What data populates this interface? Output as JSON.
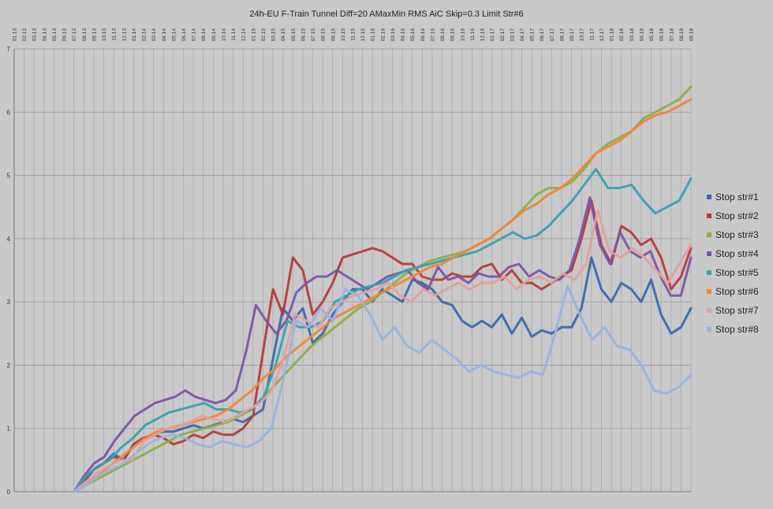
{
  "chart_data": {
    "type": "line",
    "title": "24h-EU F-Train Tunnel Diff=20 AMaxMin RMS AiC Skip=0.3 Limit Str#6",
    "xlabel": "",
    "ylabel": "",
    "ylim": [
      0,
      7
    ],
    "y_ticks": [
      "0",
      "1",
      "2",
      "3",
      "4",
      "5",
      "6",
      "7"
    ],
    "x_tick_labels": [
      "01.13",
      "02.13",
      "03.13",
      "04.13",
      "05.13",
      "06.13",
      "07.13",
      "08.13",
      "09.13",
      "10.13",
      "11.13",
      "12.13",
      "01.14",
      "02.14",
      "03.14",
      "04.14",
      "05.14",
      "06.14",
      "07.14",
      "08.14",
      "09.14",
      "10.14",
      "11.14",
      "12.14",
      "01.15",
      "02.15",
      "03.15",
      "04.15",
      "05.15",
      "06.15",
      "07.15",
      "08.15",
      "09.15",
      "10.15",
      "11.15",
      "12.15",
      "01.16",
      "02.16",
      "03.16",
      "04.16",
      "05.16",
      "06.16",
      "07.16",
      "08.16",
      "09.16",
      "10.16",
      "11.16",
      "12.16",
      "01.17",
      "02.17",
      "03.17",
      "04.17",
      "05.17",
      "06.17",
      "07.17",
      "08.17",
      "09.17",
      "10.17",
      "11.17",
      "12.17",
      "01.18",
      "02.18",
      "03.18",
      "04.18",
      "05.18",
      "06.18",
      "07.18",
      "08.18",
      "09.18"
    ],
    "grid": "vertical lines at each month, horizontal lines at each integer",
    "legend_position": "right",
    "background_color": "#c9c9c9",
    "x_start_month_index": 6,
    "series": [
      {
        "name": "Stop str#1",
        "color": "#3a6aab",
        "values": [
          0.0,
          0.15,
          0.35,
          0.45,
          0.6,
          0.5,
          0.75,
          0.85,
          0.9,
          0.95,
          0.95,
          1.0,
          1.05,
          1.0,
          1.05,
          1.1,
          1.15,
          1.1,
          1.2,
          1.3,
          2.1,
          2.9,
          2.7,
          2.9,
          2.35,
          2.5,
          2.8,
          3.0,
          3.2,
          3.2,
          3.0,
          3.2,
          3.1,
          3.0,
          3.35,
          3.3,
          3.2,
          3.0,
          2.95,
          2.7,
          2.6,
          2.7,
          2.6,
          2.8,
          2.5,
          2.75,
          2.45,
          2.55,
          2.5,
          2.6,
          2.6,
          2.9,
          3.7,
          3.2,
          3.0,
          3.3,
          3.2,
          3.0,
          3.35,
          2.8,
          2.5,
          2.6,
          2.9
        ]
      },
      {
        "name": "Stop str#2",
        "color": "#b53c3c",
        "values": [
          0.0,
          0.2,
          0.35,
          0.45,
          0.55,
          0.5,
          0.75,
          0.85,
          0.9,
          0.85,
          0.75,
          0.8,
          0.9,
          0.85,
          0.95,
          0.9,
          0.9,
          1.0,
          1.2,
          2.2,
          3.2,
          2.8,
          3.7,
          3.5,
          2.8,
          3.0,
          3.3,
          3.7,
          3.75,
          3.8,
          3.85,
          3.8,
          3.7,
          3.6,
          3.6,
          3.4,
          3.35,
          3.35,
          3.45,
          3.4,
          3.4,
          3.55,
          3.6,
          3.35,
          3.5,
          3.3,
          3.3,
          3.2,
          3.3,
          3.4,
          3.5,
          4.0,
          4.6,
          3.9,
          3.6,
          4.2,
          4.1,
          3.9,
          4.0,
          3.7,
          3.2,
          3.4,
          3.85
        ]
      },
      {
        "name": "Stop str#3",
        "color": "#8ab04a",
        "values": [
          0.0,
          0.1,
          0.2,
          0.3,
          0.4,
          0.5,
          0.6,
          0.7,
          0.8,
          0.9,
          0.95,
          1.0,
          1.05,
          1.1,
          1.2,
          1.3,
          1.5,
          1.7,
          1.9,
          2.1,
          2.3,
          2.45,
          2.6,
          2.75,
          2.9,
          3.0,
          3.15,
          3.3,
          3.45,
          3.55,
          3.65,
          3.7,
          3.75,
          3.8,
          3.9,
          4.0,
          4.15,
          4.3,
          4.5,
          4.7,
          4.8,
          4.8,
          4.9,
          5.1,
          5.35,
          5.5,
          5.6,
          5.7,
          5.9,
          6.0,
          6.1,
          6.2,
          6.4
        ]
      },
      {
        "name": "Stop str#4",
        "color": "#7b54a8",
        "values": [
          0.0,
          0.25,
          0.45,
          0.55,
          0.8,
          1.0,
          1.2,
          1.3,
          1.4,
          1.45,
          1.5,
          1.6,
          1.5,
          1.45,
          1.4,
          1.45,
          1.6,
          2.2,
          2.95,
          2.7,
          2.5,
          2.7,
          3.15,
          3.3,
          3.4,
          3.4,
          3.5,
          3.4,
          3.3,
          3.2,
          3.3,
          3.4,
          3.45,
          3.5,
          3.3,
          3.2,
          3.55,
          3.35,
          3.4,
          3.3,
          3.45,
          3.4,
          3.4,
          3.55,
          3.6,
          3.4,
          3.5,
          3.4,
          3.35,
          3.5,
          4.0,
          4.65,
          3.9,
          3.6,
          4.1,
          3.8,
          3.7,
          3.8,
          3.4,
          3.1,
          3.1,
          3.7
        ]
      },
      {
        "name": "Stop str#5",
        "color": "#3aa0b2",
        "values": [
          0.0,
          0.25,
          0.4,
          0.5,
          0.7,
          0.85,
          1.05,
          1.15,
          1.25,
          1.3,
          1.35,
          1.4,
          1.3,
          1.3,
          1.25,
          1.3,
          1.5,
          2.0,
          2.7,
          2.6,
          2.6,
          2.7,
          3.0,
          3.1,
          3.2,
          3.25,
          3.3,
          3.4,
          3.5,
          3.55,
          3.6,
          3.65,
          3.7,
          3.75,
          3.8,
          3.9,
          4.0,
          4.1,
          4.0,
          4.05,
          4.2,
          4.4,
          4.6,
          4.85,
          5.1,
          4.8,
          4.8,
          4.85,
          4.6,
          4.4,
          4.5,
          4.6,
          4.95
        ]
      },
      {
        "name": "Stop str#6",
        "color": "#f0873a",
        "values": [
          0.0,
          0.15,
          0.25,
          0.4,
          0.55,
          0.7,
          0.85,
          0.95,
          1.0,
          1.05,
          1.1,
          1.15,
          1.2,
          1.3,
          1.45,
          1.6,
          1.8,
          1.95,
          2.15,
          2.3,
          2.45,
          2.6,
          2.75,
          2.85,
          2.95,
          3.05,
          3.15,
          3.25,
          3.35,
          3.45,
          3.55,
          3.6,
          3.7,
          3.8,
          3.9,
          4.0,
          4.15,
          4.3,
          4.45,
          4.55,
          4.7,
          4.8,
          4.95,
          5.15,
          5.35,
          5.45,
          5.55,
          5.7,
          5.85,
          5.95,
          6.0,
          6.1,
          6.2
        ]
      },
      {
        "name": "Stop str#7",
        "color": "#e3a09e",
        "values": [
          0.0,
          0.15,
          0.3,
          0.4,
          0.5,
          0.5,
          0.8,
          0.9,
          1.0,
          1.05,
          1.1,
          1.2,
          1.15,
          1.1,
          1.2,
          1.3,
          1.4,
          1.6,
          2.1,
          2.8,
          2.7,
          2.6,
          2.9,
          3.0,
          3.1,
          3.15,
          3.2,
          3.3,
          3.1,
          3.0,
          3.2,
          3.1,
          3.2,
          3.3,
          3.2,
          3.3,
          3.3,
          3.4,
          3.2,
          3.35,
          3.4,
          3.3,
          3.45,
          3.35,
          3.6,
          4.45,
          3.8,
          3.7,
          3.85,
          3.7,
          3.5,
          3.3,
          3.6,
          3.9
        ]
      },
      {
        "name": "Stop str#8",
        "color": "#98b4e0",
        "values": [
          0.0,
          0.1,
          0.25,
          0.35,
          0.45,
          0.6,
          0.75,
          0.85,
          0.9,
          0.85,
          0.75,
          0.7,
          0.8,
          0.75,
          0.7,
          0.8,
          1.0,
          1.8,
          2.7,
          2.6,
          2.9,
          2.7,
          3.2,
          3.1,
          2.8,
          2.4,
          2.6,
          2.3,
          2.2,
          2.4,
          2.25,
          2.1,
          1.9,
          2.0,
          1.9,
          1.85,
          1.8,
          1.9,
          1.85,
          2.5,
          3.25,
          2.8,
          2.4,
          2.6,
          2.3,
          2.25,
          2.0,
          1.6,
          1.55,
          1.65,
          1.85
        ]
      }
    ]
  }
}
